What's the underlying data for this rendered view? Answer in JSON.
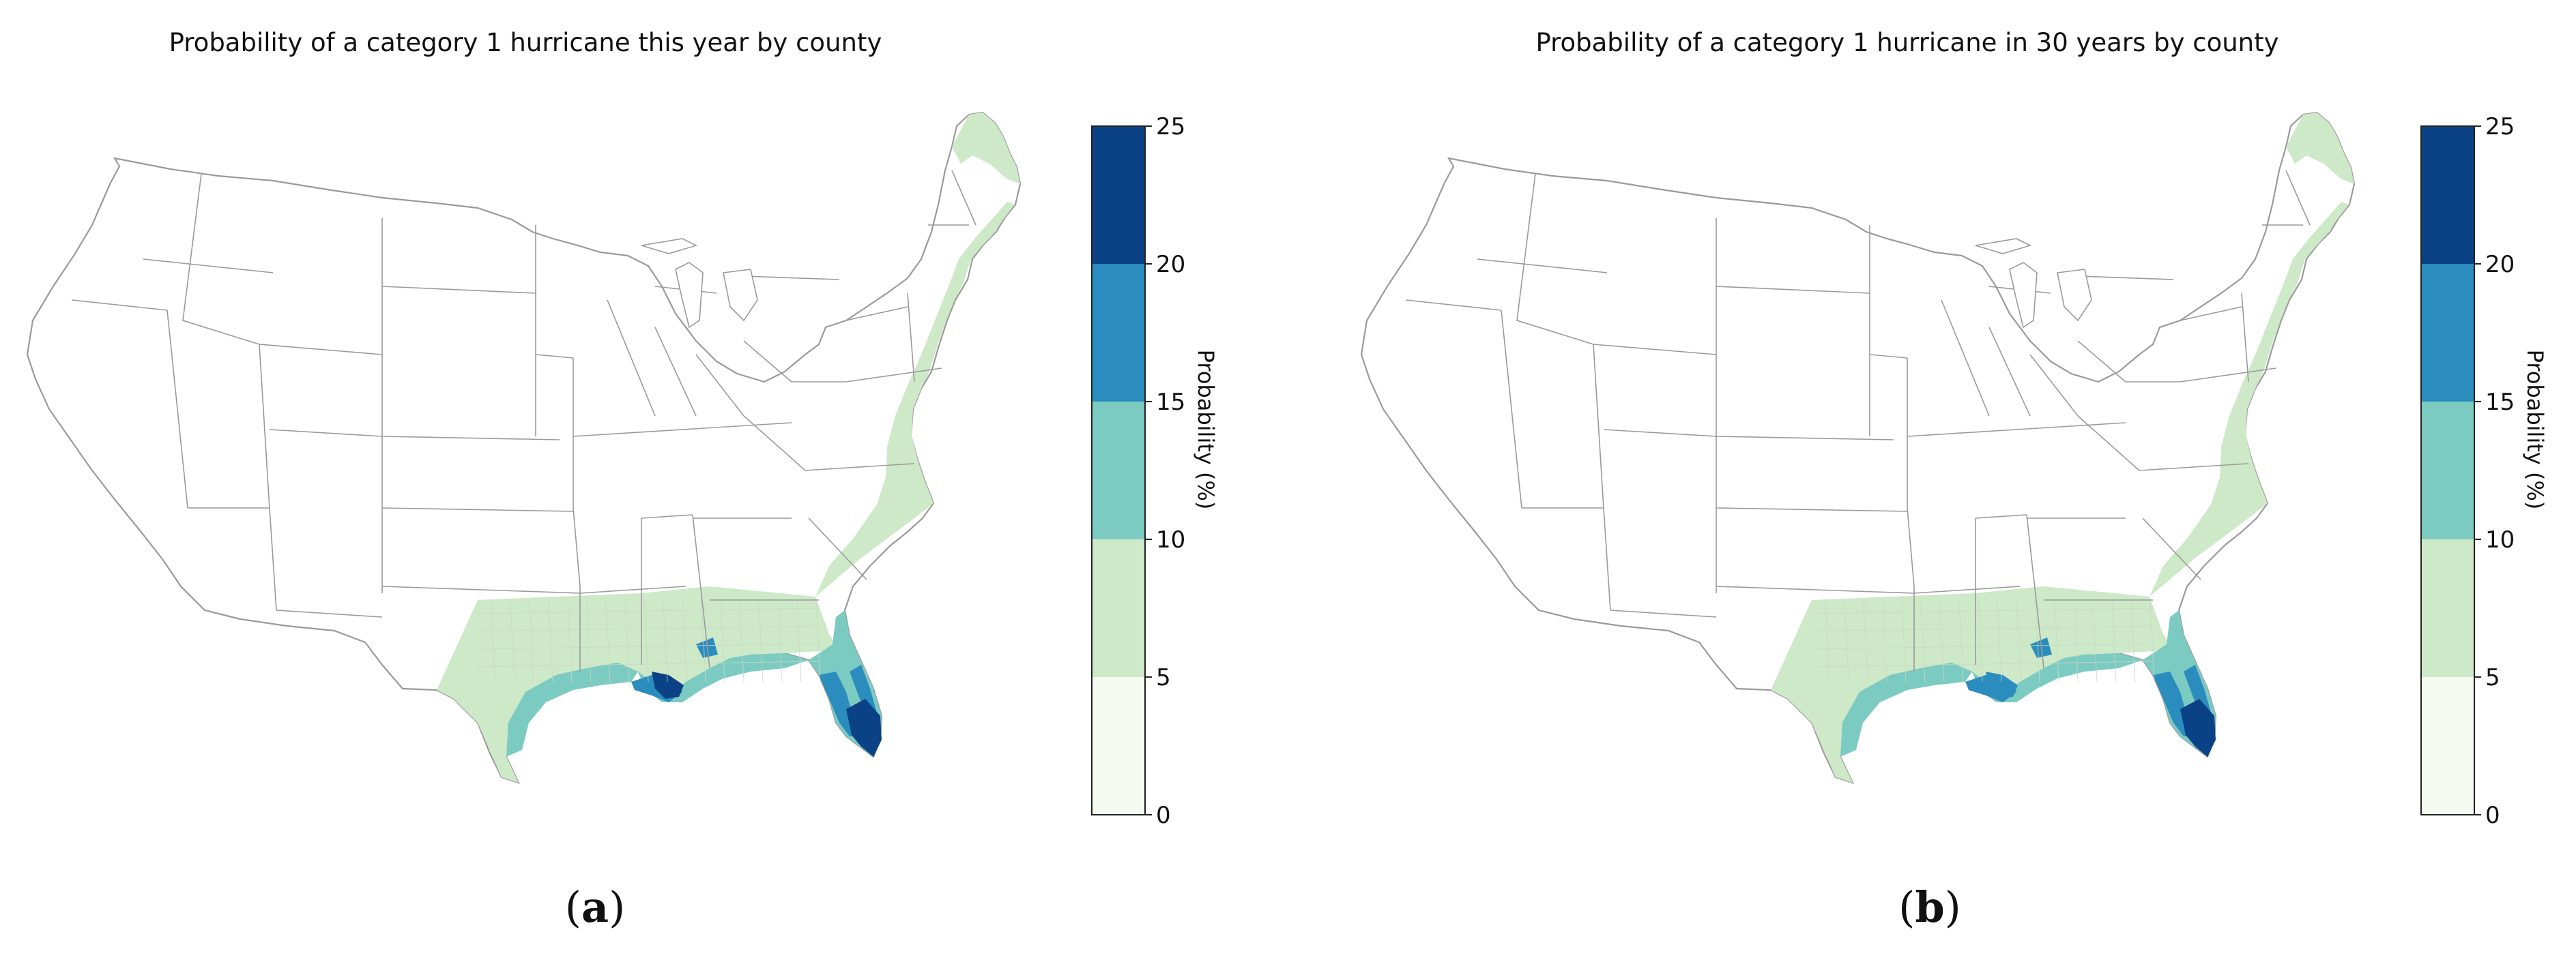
{
  "panels": [
    {
      "id": "a",
      "title": "Probability of a category 1 hurricane this year by county",
      "caption_letter": "a",
      "colorbar": {
        "label": "Probability (%)",
        "ticks": [
          "0",
          "5",
          "10",
          "15",
          "20",
          "25"
        ]
      },
      "intensity": 1.0
    },
    {
      "id": "b",
      "title": "Probability of a category 1 hurricane in 30 years by county",
      "caption_letter": "b",
      "colorbar": {
        "label": "Probability (%)",
        "ticks": [
          "0",
          "5",
          "10",
          "15",
          "20",
          "25"
        ]
      },
      "intensity": 0.95
    }
  ],
  "legend_bins": [
    {
      "range": [
        0,
        5
      ],
      "color": "#f5faf1"
    },
    {
      "range": [
        5,
        10
      ],
      "color": "#cde9c8"
    },
    {
      "range": [
        10,
        15
      ],
      "color": "#7ccbc2"
    },
    {
      "range": [
        15,
        20
      ],
      "color": "#2b8cbe"
    },
    {
      "range": [
        20,
        25
      ],
      "color": "#0b4285"
    }
  ],
  "colors": {
    "state_border": "#9a9a9a",
    "county_border": "#c9d9c3",
    "land": "#ffffff"
  }
}
